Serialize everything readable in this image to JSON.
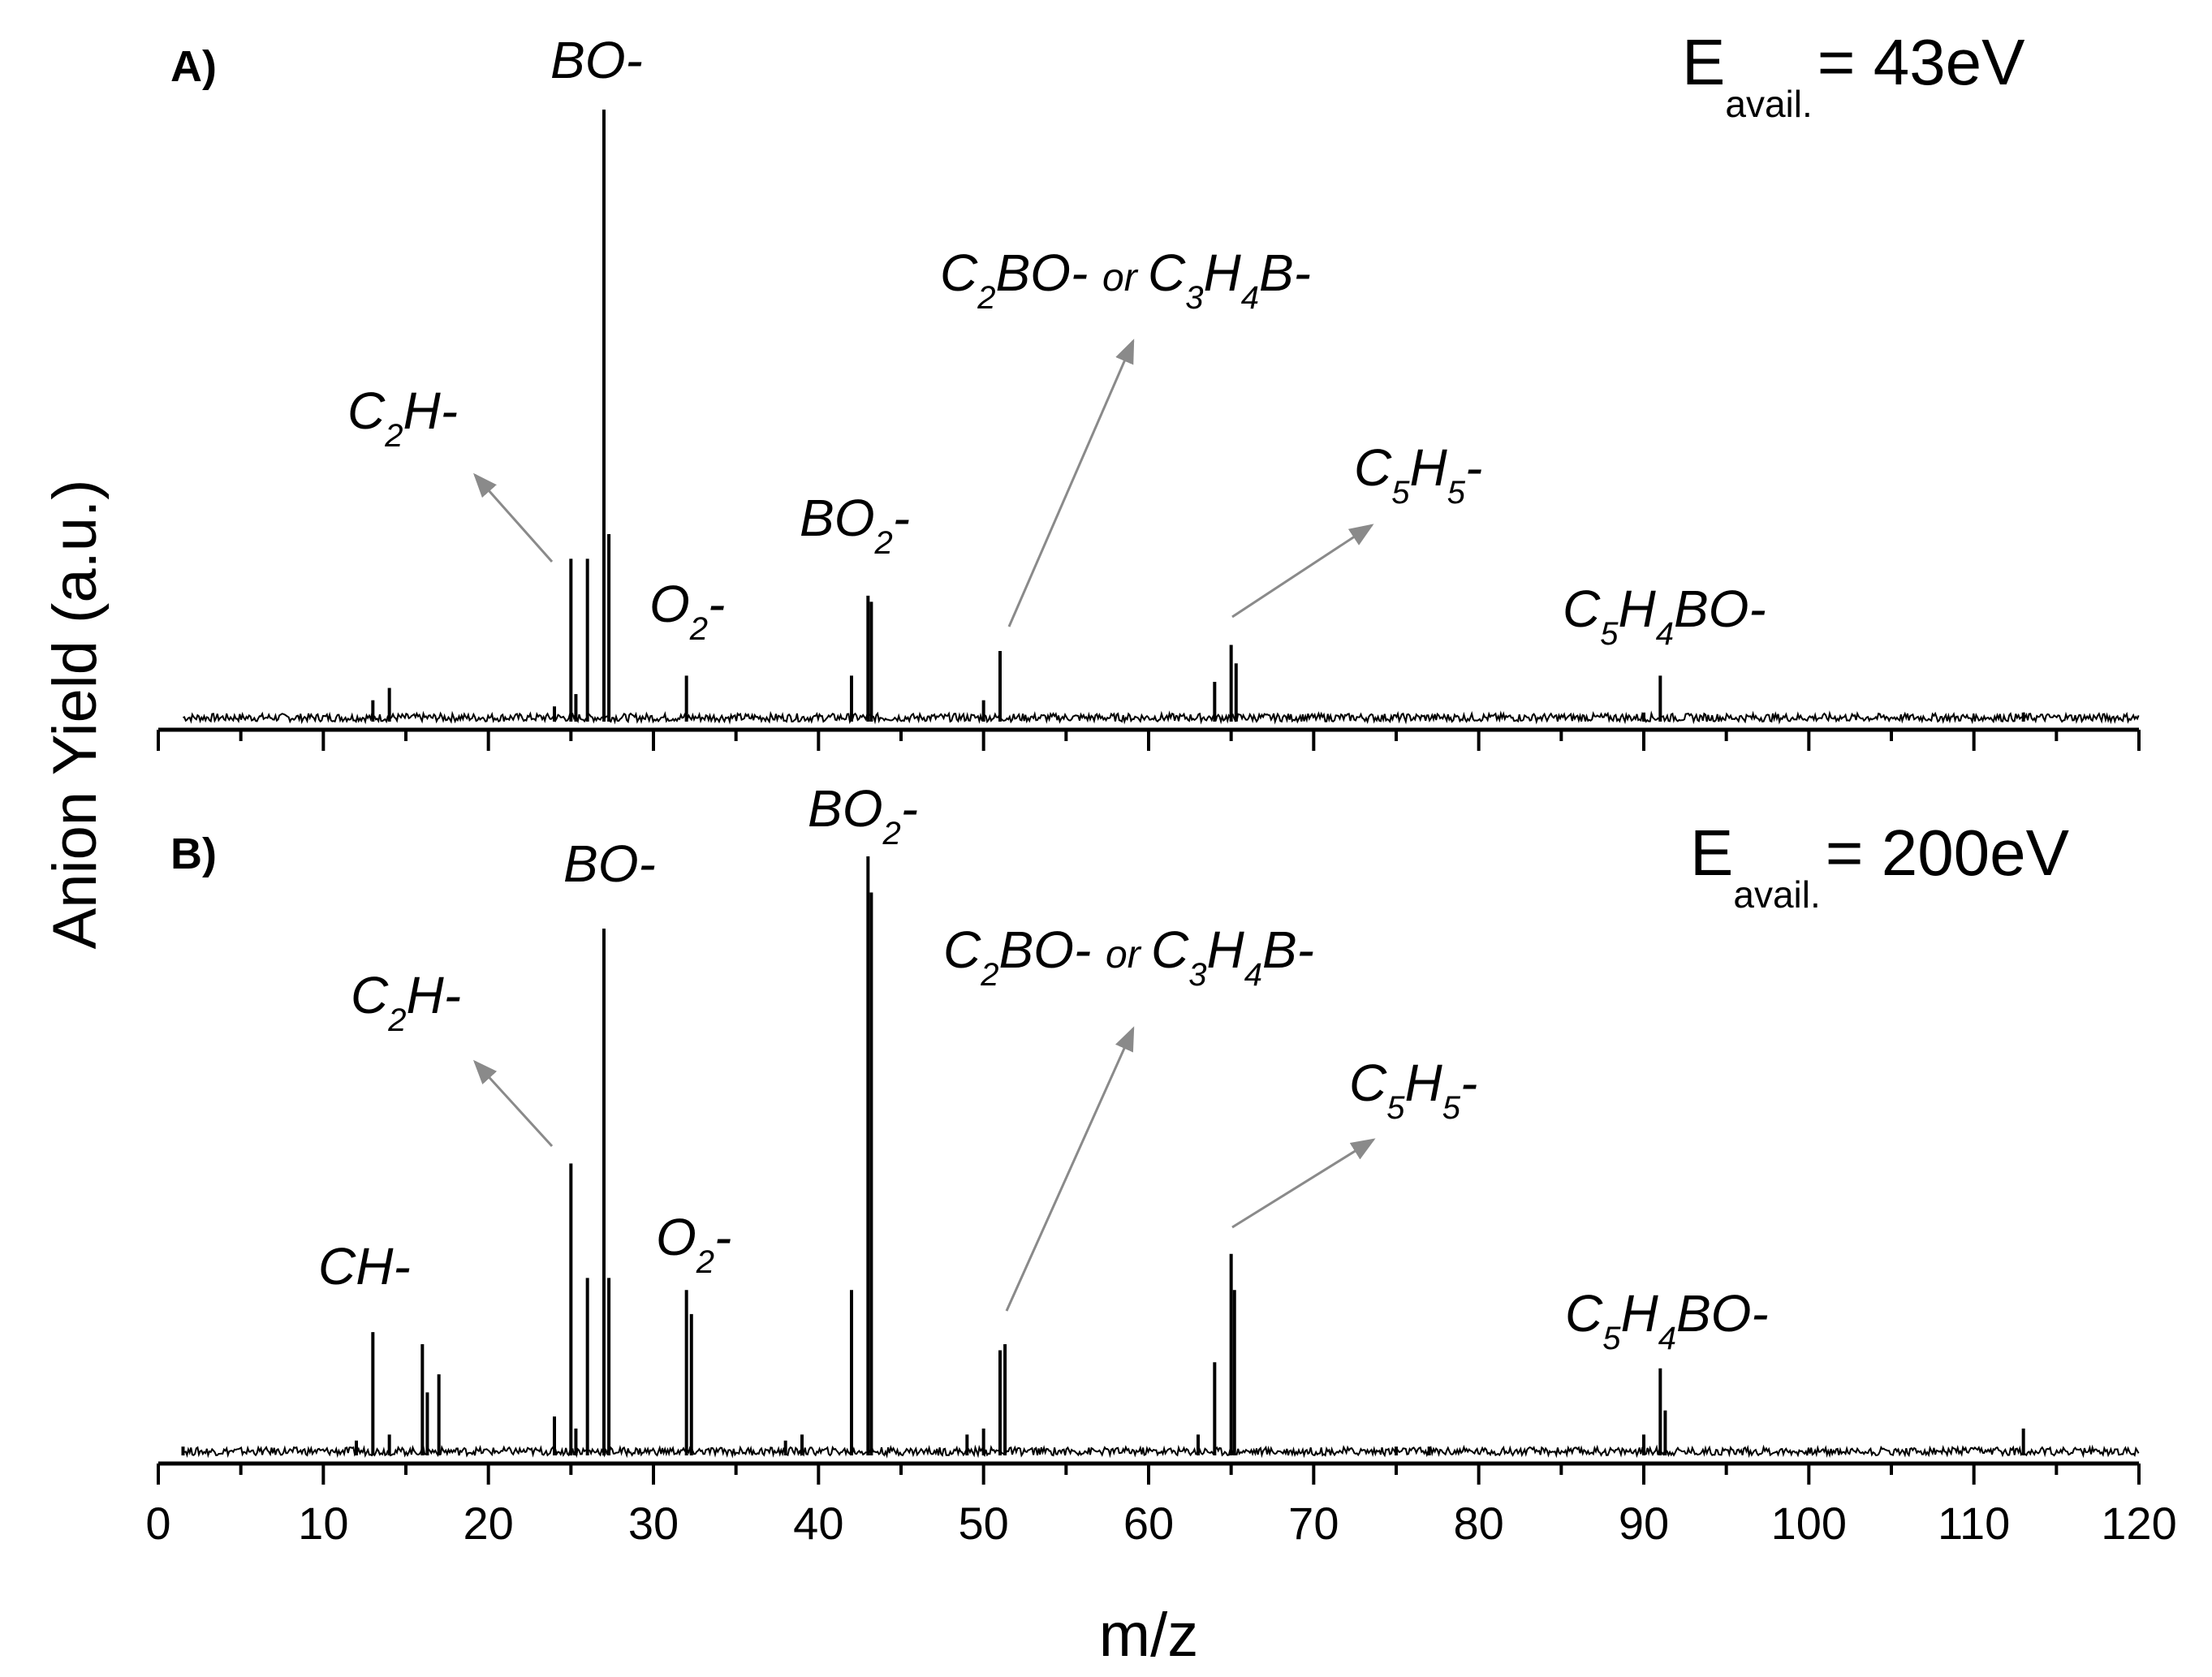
{
  "chart_data": {
    "type": "line",
    "xlabel": "m/z",
    "ylabel": "Anion Yield (a.u.)",
    "xlim": [
      0,
      120
    ],
    "x_ticks": [
      "0",
      "10",
      "20",
      "30",
      "40",
      "50",
      "60",
      "70",
      "80",
      "90",
      "100",
      "110",
      "120"
    ],
    "x_tick_step": 10,
    "x_minor_tick_step": 5,
    "grid": false,
    "y_ticks_labeled": false,
    "panels": [
      {
        "label": "A)",
        "energy": {
          "symbol": "E",
          "subscript": "avail.",
          "value": "= 43eV"
        },
        "ylim": [
          0,
          1.0
        ],
        "peaks": [
          {
            "mz": 13,
            "y": 0.04
          },
          {
            "mz": 14,
            "y": 0.06
          },
          {
            "mz": 24,
            "y": 0.03
          },
          {
            "mz": 25,
            "y": 0.27
          },
          {
            "mz": 25.3,
            "y": 0.05
          },
          {
            "mz": 26,
            "y": 0.27
          },
          {
            "mz": 27,
            "y": 1.0
          },
          {
            "mz": 27.3,
            "y": 0.31
          },
          {
            "mz": 32,
            "y": 0.08
          },
          {
            "mz": 42,
            "y": 0.08
          },
          {
            "mz": 43,
            "y": 0.21
          },
          {
            "mz": 43.2,
            "y": 0.2
          },
          {
            "mz": 50,
            "y": 0.04
          },
          {
            "mz": 51,
            "y": 0.12
          },
          {
            "mz": 64,
            "y": 0.07
          },
          {
            "mz": 65,
            "y": 0.13
          },
          {
            "mz": 65.3,
            "y": 0.1
          },
          {
            "mz": 90,
            "y": 0.02
          },
          {
            "mz": 91,
            "y": 0.08
          },
          {
            "mz": 113,
            "y": 0.02
          }
        ],
        "annotations": [
          {
            "parts": [
              [
                "C",
                ""
              ],
              [
                "2",
                "sub"
              ],
              [
                "H-",
                ""
              ]
            ],
            "arrow": true
          },
          {
            "parts": [
              [
                "BO-",
                ""
              ]
            ],
            "arrow": false
          },
          {
            "parts": [
              [
                "O",
                ""
              ],
              [
                "2",
                "sub"
              ],
              [
                "-",
                ""
              ]
            ],
            "arrow": false
          },
          {
            "parts": [
              [
                "BO",
                ""
              ],
              [
                "2",
                "sub"
              ],
              [
                "-",
                ""
              ]
            ],
            "arrow": false
          },
          {
            "parts": [
              [
                "C",
                ""
              ],
              [
                "2",
                "sub"
              ],
              [
                "BO- ",
                ""
              ],
              [
                "or ",
                "small"
              ],
              [
                "C",
                ""
              ],
              [
                "3",
                "sub"
              ],
              [
                "H",
                ""
              ],
              [
                "4",
                "sub"
              ],
              [
                "B-",
                ""
              ]
            ],
            "arrow": true
          },
          {
            "parts": [
              [
                "C",
                ""
              ],
              [
                "5",
                "sub"
              ],
              [
                "H",
                ""
              ],
              [
                "5",
                "sub"
              ],
              [
                "-",
                ""
              ]
            ],
            "arrow": true
          },
          {
            "parts": [
              [
                "C",
                ""
              ],
              [
                "5",
                "sub"
              ],
              [
                "H",
                ""
              ],
              [
                "4",
                "sub"
              ],
              [
                "BO-",
                ""
              ]
            ],
            "arrow": false
          }
        ]
      },
      {
        "label": "B)",
        "energy": {
          "symbol": "E",
          "subscript": "avail.",
          "value": "= 200eV"
        },
        "ylim": [
          0,
          1.0
        ],
        "peaks": [
          {
            "mz": 1.5,
            "y": 0.02
          },
          {
            "mz": 12,
            "y": 0.03
          },
          {
            "mz": 13,
            "y": 0.21
          },
          {
            "mz": 14,
            "y": 0.04
          },
          {
            "mz": 16,
            "y": 0.19
          },
          {
            "mz": 16.3,
            "y": 0.11
          },
          {
            "mz": 17,
            "y": 0.14
          },
          {
            "mz": 24,
            "y": 0.07
          },
          {
            "mz": 25,
            "y": 0.49
          },
          {
            "mz": 25.3,
            "y": 0.05
          },
          {
            "mz": 26,
            "y": 0.3
          },
          {
            "mz": 27,
            "y": 0.88
          },
          {
            "mz": 27.3,
            "y": 0.3
          },
          {
            "mz": 32,
            "y": 0.28
          },
          {
            "mz": 32.3,
            "y": 0.24
          },
          {
            "mz": 38,
            "y": 0.03
          },
          {
            "mz": 39,
            "y": 0.04
          },
          {
            "mz": 42,
            "y": 0.28
          },
          {
            "mz": 43,
            "y": 1.0
          },
          {
            "mz": 43.2,
            "y": 0.94
          },
          {
            "mz": 49,
            "y": 0.04
          },
          {
            "mz": 50,
            "y": 0.05
          },
          {
            "mz": 51,
            "y": 0.18
          },
          {
            "mz": 51.3,
            "y": 0.19
          },
          {
            "mz": 63,
            "y": 0.04
          },
          {
            "mz": 64,
            "y": 0.16
          },
          {
            "mz": 65,
            "y": 0.34
          },
          {
            "mz": 65.2,
            "y": 0.28
          },
          {
            "mz": 75,
            "y": 0.02
          },
          {
            "mz": 77,
            "y": 0.02
          },
          {
            "mz": 90,
            "y": 0.04
          },
          {
            "mz": 91,
            "y": 0.15
          },
          {
            "mz": 91.3,
            "y": 0.08
          },
          {
            "mz": 113,
            "y": 0.05
          }
        ],
        "annotations": [
          {
            "parts": [
              [
                "CH-",
                ""
              ]
            ],
            "arrow": false
          },
          {
            "parts": [
              [
                "C",
                ""
              ],
              [
                "2",
                "sub"
              ],
              [
                "H-",
                ""
              ]
            ],
            "arrow": true
          },
          {
            "parts": [
              [
                "BO-",
                ""
              ]
            ],
            "arrow": false
          },
          {
            "parts": [
              [
                "O",
                ""
              ],
              [
                "2",
                "sub"
              ],
              [
                "-",
                ""
              ]
            ],
            "arrow": false
          },
          {
            "parts": [
              [
                "BO",
                ""
              ],
              [
                "2",
                "sub"
              ],
              [
                "-",
                ""
              ]
            ],
            "arrow": false
          },
          {
            "parts": [
              [
                "C",
                ""
              ],
              [
                "2",
                "sub"
              ],
              [
                "BO- ",
                ""
              ],
              [
                "or ",
                "small"
              ],
              [
                "C",
                ""
              ],
              [
                "3",
                "sub"
              ],
              [
                "H",
                ""
              ],
              [
                "4",
                "sub"
              ],
              [
                "B-",
                ""
              ]
            ],
            "arrow": true
          },
          {
            "parts": [
              [
                "C",
                ""
              ],
              [
                "5",
                "sub"
              ],
              [
                "H",
                ""
              ],
              [
                "5",
                "sub"
              ],
              [
                "-",
                ""
              ]
            ],
            "arrow": true
          },
          {
            "parts": [
              [
                "C",
                ""
              ],
              [
                "5",
                "sub"
              ],
              [
                "H",
                ""
              ],
              [
                "4",
                "sub"
              ],
              [
                "BO-",
                ""
              ]
            ],
            "arrow": false
          }
        ]
      }
    ]
  }
}
